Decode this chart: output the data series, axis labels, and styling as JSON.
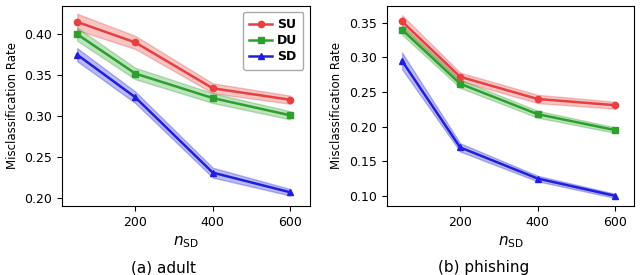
{
  "x": [
    50,
    200,
    400,
    600
  ],
  "adult": {
    "SU_mean": [
      0.415,
      0.39,
      0.334,
      0.32
    ],
    "SU_std": [
      0.01,
      0.008,
      0.006,
      0.005
    ],
    "DU_mean": [
      0.4,
      0.352,
      0.322,
      0.301
    ],
    "DU_std": [
      0.008,
      0.007,
      0.006,
      0.005
    ],
    "SD_mean": [
      0.375,
      0.323,
      0.231,
      0.207
    ],
    "SD_std": [
      0.008,
      0.007,
      0.006,
      0.004
    ]
  },
  "phishing": {
    "SU_mean": [
      0.352,
      0.272,
      0.24,
      0.231
    ],
    "SU_std": [
      0.009,
      0.006,
      0.006,
      0.005
    ],
    "DU_mean": [
      0.34,
      0.262,
      0.218,
      0.195
    ],
    "DU_std": [
      0.007,
      0.006,
      0.005,
      0.004
    ],
    "SD_mean": [
      0.295,
      0.17,
      0.125,
      0.1
    ],
    "SD_std": [
      0.012,
      0.006,
      0.004,
      0.003
    ]
  },
  "colors": {
    "SU": "#e84040",
    "DU": "#2ca02c",
    "SD": "#1f1fdd"
  },
  "markers": {
    "SU": "o",
    "DU": "s",
    "SD": "^"
  },
  "ylabel": "Misclassification Rate",
  "xlabel": "$\\it{n}_{\\rm{SD}}$",
  "subtitles": [
    "(a) adult",
    "(b) phishing"
  ],
  "legend_labels": [
    "SU",
    "DU",
    "SD"
  ],
  "adult_ylim": [
    0.19,
    0.435
  ],
  "phishing_ylim": [
    0.085,
    0.375
  ],
  "adult_yticks": [
    0.2,
    0.25,
    0.3,
    0.35,
    0.4
  ],
  "phishing_yticks": [
    0.1,
    0.15,
    0.2,
    0.25,
    0.3,
    0.35
  ]
}
